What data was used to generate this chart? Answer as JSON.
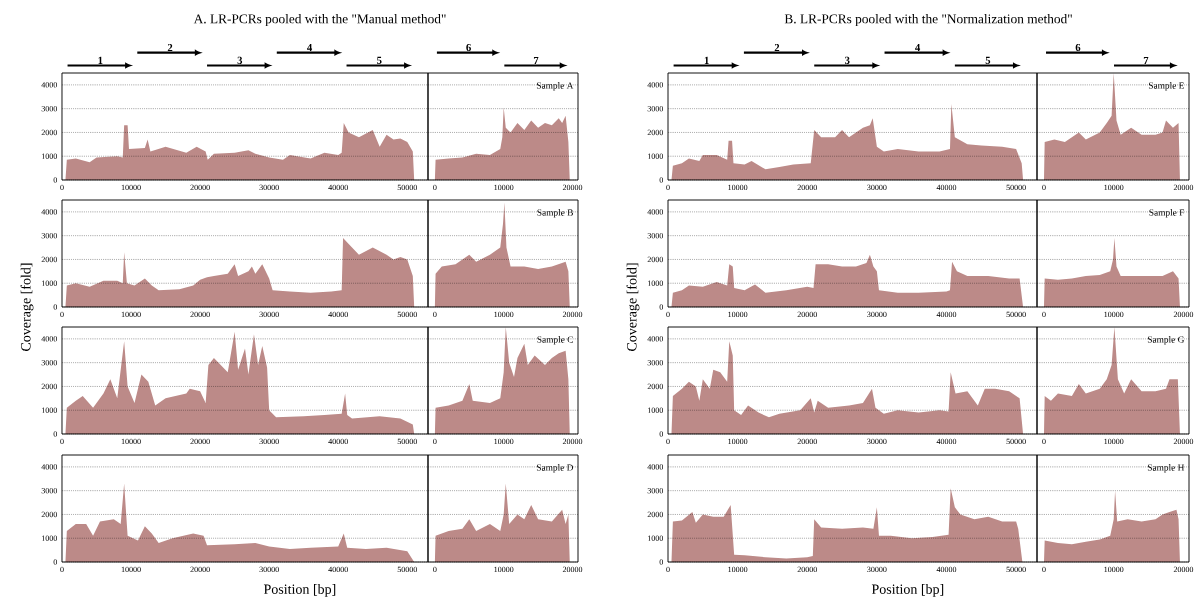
{
  "chart_data": [
    {
      "type": "area",
      "title": "A. LR-PCRs pooled with the \"Manual method\"",
      "color": "#bc8a88",
      "xlim": [
        0,
        53000
      ],
      "ylim": [
        0,
        4500
      ],
      "xticks": [
        0,
        10000,
        20000,
        30000,
        40000,
        50000
      ],
      "yticks": [
        0,
        1000,
        2000,
        3000,
        4000
      ],
      "grid": "y",
      "annotations": [
        "1",
        "2",
        "3",
        "4",
        "5"
      ],
      "x": [
        500,
        700,
        2000,
        4000,
        5000,
        8000,
        8800,
        9000,
        9500,
        9700,
        12000,
        12400,
        12800,
        15000,
        18000,
        19500,
        20800,
        21100,
        22000,
        25000,
        27000,
        28000,
        30000,
        32000,
        33000,
        36000,
        38000,
        40000,
        40500,
        40800,
        41500,
        43000,
        45000,
        46000,
        47000,
        48000,
        49000,
        50000,
        50800,
        51000
      ],
      "values": [
        0,
        850,
        900,
        750,
        950,
        1000,
        950,
        2300,
        2300,
        1300,
        1350,
        1700,
        1200,
        1400,
        1150,
        1400,
        1200,
        850,
        1100,
        1150,
        1250,
        1100,
        950,
        850,
        1050,
        900,
        1150,
        1050,
        1150,
        2400,
        2000,
        1800,
        2100,
        1400,
        1900,
        1700,
        1750,
        1600,
        1200,
        0
      ]
    },
    {
      "type": "area",
      "color": "#bc8a88",
      "xlim": [
        -1000,
        20800
      ],
      "ylim": [
        0,
        4500
      ],
      "xticks": [
        0,
        10000,
        20000
      ],
      "yticks": [
        0,
        1000,
        2000,
        3000,
        4000
      ],
      "grid": "y",
      "tick_labels": "x",
      "annotations": [
        "Sample A",
        "6",
        "7"
      ],
      "x": [
        0,
        100,
        2000,
        4000,
        6000,
        8000,
        9500,
        9800,
        10000,
        10300,
        11000,
        12000,
        13000,
        14000,
        15000,
        16000,
        17000,
        18000,
        18500,
        19000,
        19400,
        19600
      ],
      "values": [
        0,
        850,
        900,
        950,
        1100,
        1050,
        1300,
        1800,
        3050,
        2200,
        2000,
        2400,
        2100,
        2500,
        2200,
        2400,
        2300,
        2600,
        2400,
        2700,
        1600,
        0
      ]
    },
    {
      "type": "area",
      "title": "B. LR-PCRs pooled with the \"Normalization method\"",
      "color": "#bc8a88",
      "xlim": [
        0,
        53000
      ],
      "ylim": [
        0,
        4500
      ],
      "xticks": [
        0,
        10000,
        20000,
        30000,
        40000,
        50000
      ],
      "yticks": [
        0,
        1000,
        2000,
        3000,
        4000
      ],
      "grid": "y",
      "annotations": [
        "1",
        "2",
        "3",
        "4",
        "5"
      ],
      "x": [
        500,
        700,
        2000,
        3000,
        4500,
        5000,
        7000,
        8500,
        8700,
        9200,
        9400,
        11000,
        12000,
        14000,
        16000,
        18000,
        20500,
        21000,
        22000,
        24000,
        25000,
        26000,
        28000,
        29000,
        29400,
        30000,
        31000,
        33000,
        36000,
        39000,
        40500,
        40700,
        41200,
        43000,
        45000,
        48000,
        50000,
        50800,
        51000
      ],
      "values": [
        0,
        600,
        700,
        900,
        800,
        1050,
        1050,
        850,
        1650,
        1650,
        700,
        650,
        800,
        450,
        550,
        650,
        700,
        2100,
        1800,
        1800,
        2100,
        1800,
        2200,
        2300,
        2600,
        1400,
        1200,
        1300,
        1200,
        1200,
        1300,
        3200,
        1800,
        1500,
        1450,
        1400,
        1300,
        700,
        0
      ]
    },
    {
      "type": "area",
      "color": "#bc8a88",
      "xlim": [
        -1000,
        20800
      ],
      "ylim": [
        0,
        4500
      ],
      "xticks": [
        0,
        10000,
        20000
      ],
      "yticks": [
        0,
        1000,
        2000,
        3000,
        4000
      ],
      "grid": "y",
      "tick_labels": "x",
      "annotations": [
        "Sample E",
        "6",
        "7"
      ],
      "x": [
        0,
        100,
        1500,
        3000,
        5000,
        6000,
        8000,
        9000,
        9700,
        10000,
        10400,
        11000,
        12500,
        14000,
        16000,
        17000,
        17500,
        18500,
        19300,
        19500
      ],
      "values": [
        0,
        1600,
        1700,
        1600,
        2000,
        1700,
        2000,
        2400,
        2700,
        4500,
        2500,
        1900,
        2200,
        1900,
        1900,
        2000,
        2500,
        2200,
        2400,
        0
      ]
    },
    {
      "type": "area",
      "ylabel": "Coverage [fold]",
      "color": "#bc8a88",
      "xlim": [
        0,
        53000
      ],
      "ylim": [
        0,
        4500
      ],
      "xticks": [
        0,
        10000,
        20000,
        30000,
        40000,
        50000
      ],
      "yticks": [
        0,
        1000,
        2000,
        3000,
        4000
      ],
      "grid": "y",
      "x": [
        500,
        700,
        2000,
        4000,
        6000,
        8000,
        8800,
        9000,
        9400,
        10500,
        12000,
        13000,
        14000,
        17000,
        19000,
        20000,
        21000,
        22000,
        24000,
        25000,
        25500,
        27000,
        27500,
        28000,
        29000,
        30000,
        30500,
        33000,
        36000,
        39000,
        40500,
        40700,
        42000,
        43000,
        45000,
        47000,
        48000,
        49000,
        50000,
        50800,
        51000
      ],
      "values": [
        0,
        900,
        1000,
        850,
        1100,
        1100,
        1000,
        2300,
        1000,
        900,
        1200,
        900,
        700,
        750,
        900,
        1150,
        1250,
        1300,
        1400,
        1800,
        1300,
        1500,
        1700,
        1400,
        1800,
        1200,
        700,
        650,
        600,
        650,
        700,
        2900,
        2500,
        2200,
        2500,
        2200,
        2000,
        2100,
        2000,
        1300,
        0
      ]
    },
    {
      "type": "area",
      "color": "#bc8a88",
      "xlim": [
        -1000,
        20800
      ],
      "ylim": [
        0,
        4500
      ],
      "xticks": [
        0,
        10000,
        20000
      ],
      "yticks": [
        0,
        1000,
        2000,
        3000,
        4000
      ],
      "grid": "y",
      "tick_labels": "x",
      "annotations": [
        "Sample B"
      ],
      "x": [
        0,
        100,
        1000,
        3000,
        5000,
        6000,
        8000,
        9500,
        9900,
        10100,
        10400,
        11000,
        13000,
        15000,
        17000,
        19000,
        19400,
        19600
      ],
      "values": [
        0,
        1400,
        1700,
        1800,
        2200,
        1900,
        2200,
        2500,
        3500,
        4400,
        2500,
        1700,
        1700,
        1600,
        1700,
        1900,
        1500,
        0
      ]
    },
    {
      "type": "area",
      "ylabel": "Coverage [fold]",
      "color": "#bc8a88",
      "xlim": [
        0,
        53000
      ],
      "ylim": [
        0,
        4500
      ],
      "xticks": [
        0,
        10000,
        20000,
        30000,
        40000,
        50000
      ],
      "yticks": [
        0,
        1000,
        2000,
        3000,
        4000
      ],
      "grid": "y",
      "x": [
        500,
        700,
        2000,
        3000,
        5000,
        7000,
        8500,
        8800,
        9300,
        9500,
        11000,
        12500,
        14000,
        17000,
        20000,
        20900,
        21200,
        23000,
        25000,
        27000,
        28500,
        29000,
        29500,
        30000,
        30300,
        33000,
        36000,
        40000,
        40500,
        40800,
        41500,
        43000,
        46000,
        49000,
        50500,
        51000
      ],
      "values": [
        0,
        600,
        700,
        900,
        850,
        1050,
        900,
        1800,
        1700,
        800,
        700,
        950,
        600,
        700,
        850,
        800,
        1800,
        1800,
        1700,
        1700,
        1850,
        2200,
        1700,
        1500,
        700,
        600,
        600,
        650,
        700,
        1900,
        1500,
        1300,
        1300,
        1200,
        1200,
        0
      ]
    },
    {
      "type": "area",
      "color": "#bc8a88",
      "xlim": [
        -1000,
        20800
      ],
      "ylim": [
        0,
        4500
      ],
      "xticks": [
        0,
        10000,
        20000
      ],
      "yticks": [
        0,
        1000,
        2000,
        3000,
        4000
      ],
      "grid": "y",
      "tick_labels": "x",
      "annotations": [
        "Sample F"
      ],
      "x": [
        0,
        100,
        2000,
        4000,
        6000,
        8000,
        9500,
        9900,
        10100,
        10400,
        11000,
        13000,
        15000,
        17000,
        18500,
        19300,
        19500
      ],
      "values": [
        0,
        1200,
        1150,
        1200,
        1300,
        1350,
        1500,
        2000,
        2900,
        1700,
        1300,
        1300,
        1300,
        1300,
        1500,
        1200,
        0
      ]
    },
    {
      "type": "area",
      "color": "#bc8a88",
      "xlim": [
        0,
        53000
      ],
      "ylim": [
        0,
        4500
      ],
      "xticks": [
        0,
        10000,
        20000,
        30000,
        40000,
        50000
      ],
      "yticks": [
        0,
        1000,
        2000,
        3000,
        4000
      ],
      "grid": "y",
      "x": [
        500,
        700,
        2000,
        3000,
        4500,
        6000,
        7000,
        8000,
        9000,
        9500,
        10500,
        11500,
        12500,
        13500,
        15000,
        18000,
        18500,
        20000,
        20800,
        21200,
        22000,
        24000,
        25000,
        25500,
        26500,
        27000,
        27800,
        28400,
        29000,
        29700,
        30000,
        31000,
        35000,
        38000,
        40500,
        41000,
        41300,
        42000,
        46000,
        49000,
        50800,
        51000
      ],
      "values": [
        0,
        1100,
        1400,
        1600,
        1100,
        1700,
        2300,
        1500,
        3900,
        2000,
        1300,
        2500,
        2200,
        1200,
        1500,
        1700,
        1900,
        1800,
        1300,
        2900,
        3200,
        2600,
        4300,
        2700,
        3600,
        2500,
        4200,
        2900,
        3700,
        2800,
        1000,
        700,
        750,
        800,
        850,
        1700,
        800,
        650,
        750,
        650,
        400,
        0
      ]
    },
    {
      "type": "area",
      "color": "#bc8a88",
      "xlim": [
        -1000,
        20800
      ],
      "ylim": [
        0,
        4500
      ],
      "xticks": [
        0,
        10000,
        20000
      ],
      "yticks": [
        0,
        1000,
        2000,
        3000,
        4000
      ],
      "grid": "y",
      "tick_labels": "x",
      "annotations": [
        "Sample C"
      ],
      "x": [
        0,
        100,
        2000,
        4000,
        5000,
        5500,
        8000,
        9500,
        10000,
        10300,
        10800,
        11500,
        12000,
        13000,
        13500,
        14500,
        16000,
        17000,
        18000,
        19000,
        19400,
        19600
      ],
      "values": [
        0,
        1100,
        1200,
        1400,
        2100,
        1400,
        1300,
        1500,
        2600,
        4500,
        3000,
        2400,
        3200,
        3800,
        2900,
        3300,
        2900,
        3200,
        3400,
        3500,
        2300,
        0
      ]
    },
    {
      "type": "area",
      "color": "#bc8a88",
      "xlim": [
        0,
        53000
      ],
      "ylim": [
        0,
        4500
      ],
      "xticks": [
        0,
        10000,
        20000,
        30000,
        40000,
        50000
      ],
      "yticks": [
        0,
        1000,
        2000,
        3000,
        4000
      ],
      "grid": "y",
      "x": [
        500,
        700,
        2000,
        3000,
        4000,
        4500,
        5000,
        6000,
        6500,
        7500,
        8500,
        8800,
        9300,
        9500,
        10500,
        11500,
        13000,
        14500,
        16000,
        19000,
        20500,
        21000,
        21500,
        23000,
        26000,
        28000,
        29300,
        29800,
        31000,
        33000,
        36000,
        39000,
        40300,
        40600,
        41300,
        43000,
        44500,
        45500,
        47000,
        49000,
        50500,
        51000
      ],
      "values": [
        0,
        1600,
        1900,
        2200,
        2000,
        1400,
        2300,
        1900,
        2700,
        2600,
        2200,
        3900,
        3300,
        1000,
        800,
        1200,
        900,
        700,
        850,
        1000,
        1500,
        900,
        1400,
        1100,
        1200,
        1300,
        1900,
        1100,
        850,
        1000,
        900,
        1000,
        950,
        2600,
        1700,
        1800,
        1200,
        1900,
        1900,
        1800,
        1500,
        0
      ]
    },
    {
      "type": "area",
      "color": "#bc8a88",
      "xlim": [
        -1000,
        20800
      ],
      "ylim": [
        0,
        4500
      ],
      "xticks": [
        0,
        10000,
        20000
      ],
      "yticks": [
        0,
        1000,
        2000,
        3000,
        4000
      ],
      "grid": "y",
      "tick_labels": "x",
      "annotations": [
        "Sample G"
      ],
      "x": [
        0,
        100,
        1000,
        2000,
        4000,
        5000,
        6000,
        8000,
        9000,
        9700,
        10100,
        10600,
        11500,
        12500,
        14000,
        16000,
        17500,
        18000,
        19200,
        19500
      ],
      "values": [
        0,
        1600,
        1400,
        1700,
        1600,
        2100,
        1700,
        1900,
        2300,
        2900,
        4500,
        2300,
        1700,
        2300,
        1800,
        1800,
        1900,
        2300,
        2300,
        0
      ]
    },
    {
      "type": "area",
      "xlabel": "Position [bp]",
      "color": "#bc8a88",
      "xlim": [
        0,
        53000
      ],
      "ylim": [
        0,
        4500
      ],
      "xticks": [
        0,
        10000,
        20000,
        30000,
        40000,
        50000
      ],
      "yticks": [
        0,
        1000,
        2000,
        3000,
        4000
      ],
      "grid": "y",
      "x": [
        500,
        700,
        2000,
        3500,
        4500,
        5500,
        7500,
        8500,
        9000,
        9500,
        11000,
        12000,
        13000,
        14000,
        16000,
        19000,
        20500,
        21000,
        25000,
        28000,
        30000,
        33000,
        36000,
        40000,
        40800,
        41300,
        44000,
        47000,
        50000,
        51000
      ],
      "values": [
        0,
        1300,
        1600,
        1600,
        1100,
        1700,
        1800,
        1600,
        3300,
        1100,
        900,
        1500,
        1200,
        800,
        1000,
        1200,
        1100,
        700,
        750,
        800,
        650,
        550,
        600,
        650,
        1200,
        600,
        550,
        600,
        450,
        0
      ]
    },
    {
      "type": "area",
      "color": "#bc8a88",
      "xlim": [
        -1000,
        20800
      ],
      "ylim": [
        0,
        4500
      ],
      "xticks": [
        0,
        10000,
        20000
      ],
      "yticks": [
        0,
        1000,
        2000,
        3000,
        4000
      ],
      "grid": "y",
      "tick_labels": "x",
      "annotations": [
        "Sample D"
      ],
      "x": [
        0,
        100,
        2000,
        4000,
        5000,
        6000,
        8000,
        9500,
        10000,
        10300,
        10800,
        12000,
        13000,
        14000,
        15000,
        17000,
        18500,
        19000,
        19400,
        19600
      ],
      "values": [
        0,
        1100,
        1300,
        1400,
        1800,
        1300,
        1600,
        1300,
        2000,
        3300,
        1600,
        2000,
        1800,
        2400,
        1800,
        1700,
        2200,
        1600,
        2000,
        0
      ]
    },
    {
      "type": "area",
      "xlabel": "Position [bp]",
      "color": "#bc8a88",
      "xlim": [
        0,
        53000
      ],
      "ylim": [
        0,
        4500
      ],
      "xticks": [
        0,
        10000,
        20000,
        30000,
        40000,
        50000
      ],
      "yticks": [
        0,
        1000,
        2000,
        3000,
        4000
      ],
      "grid": "y",
      "x": [
        500,
        700,
        2000,
        3500,
        4000,
        5000,
        6500,
        8000,
        9000,
        9500,
        11000,
        14000,
        17000,
        20000,
        20800,
        21000,
        22000,
        25000,
        28000,
        29500,
        30000,
        30300,
        32000,
        35000,
        38000,
        40300,
        40600,
        41200,
        42000,
        44000,
        46000,
        48000,
        50000,
        50300,
        50900
      ],
      "values": [
        0,
        1700,
        1750,
        2100,
        1650,
        2000,
        1900,
        1900,
        2400,
        300,
        280,
        200,
        150,
        200,
        250,
        1800,
        1450,
        1400,
        1450,
        1400,
        2300,
        1100,
        1100,
        1000,
        1050,
        1150,
        3100,
        2300,
        2000,
        1800,
        1900,
        1700,
        1700,
        1400,
        0
      ]
    },
    {
      "type": "area",
      "color": "#bc8a88",
      "xlim": [
        -1000,
        20800
      ],
      "ylim": [
        0,
        4500
      ],
      "xticks": [
        0,
        10000,
        20000
      ],
      "yticks": [
        0,
        1000,
        2000,
        3000,
        4000
      ],
      "grid": "y",
      "tick_labels": "x",
      "annotations": [
        "Sample H"
      ],
      "x": [
        0,
        100,
        2000,
        4000,
        6000,
        8000,
        9500,
        10000,
        10200,
        10500,
        12000,
        14000,
        16000,
        17000,
        18000,
        19000,
        19300,
        19500
      ],
      "values": [
        0,
        900,
        800,
        750,
        850,
        950,
        1100,
        1800,
        3000,
        1700,
        1800,
        1700,
        1800,
        2000,
        2100,
        2200,
        1800,
        0
      ]
    }
  ]
}
